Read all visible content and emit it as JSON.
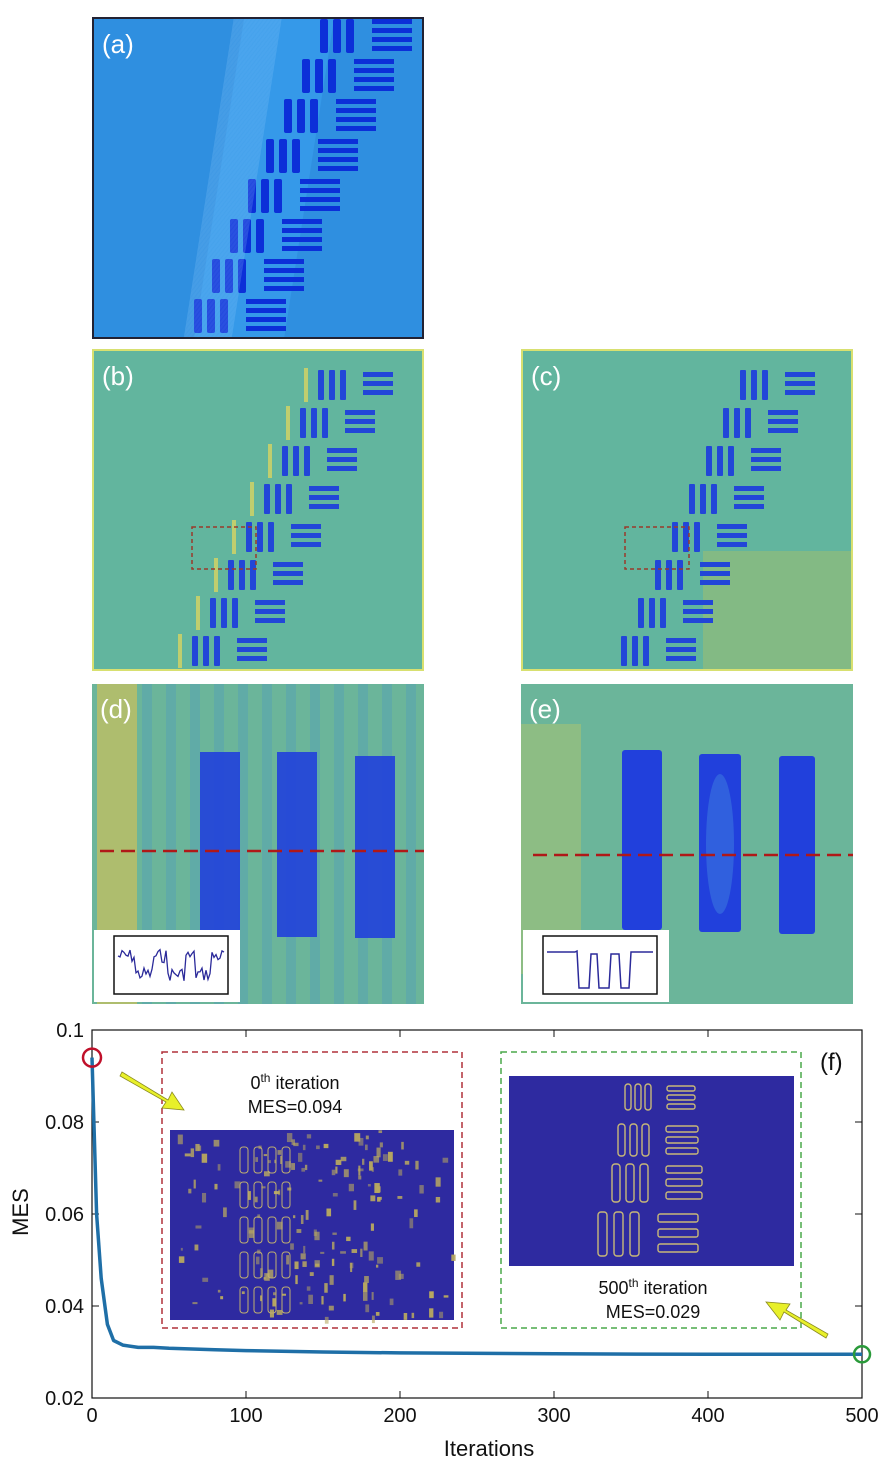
{
  "panels": {
    "a": {
      "label": "(a)"
    },
    "b": {
      "label": "(b)"
    },
    "c": {
      "label": "(c)"
    },
    "d": {
      "label": "(d)"
    },
    "e": {
      "label": "(e)"
    },
    "f": {
      "label": "(f)"
    }
  },
  "colors": {
    "panel_a_bg": "#2f8fe0",
    "panel_a_bar": "#0c2fd8",
    "panel_bc_bg": "#62b59e",
    "panel_bc_bar": "#2246d8",
    "panel_de_bg": "#6bb59a",
    "panel_de_bar": "#2140dc",
    "curve": "#1f6fa7",
    "start_marker": "#c0102a",
    "end_marker": "#2a9a3a",
    "inset0_border": "#b0303a",
    "inset500_border": "#4aa84a",
    "inset_image_bg": "#2e2aa0",
    "arrow": "#e8f02a"
  },
  "chart_data": {
    "type": "line",
    "xlabel": "Iterations",
    "ylabel": "MES",
    "xlim": [
      0,
      500
    ],
    "ylim": [
      0.02,
      0.1
    ],
    "xticks": [
      0,
      100,
      200,
      300,
      400,
      500
    ],
    "yticks": [
      0.02,
      0.04,
      0.06,
      0.08,
      0.1
    ],
    "xtick_labels": [
      "0",
      "100",
      "200",
      "300",
      "400",
      "500"
    ],
    "ytick_labels": [
      "0.02",
      "0.04",
      "0.06",
      "0.08",
      "0.1"
    ],
    "grid": false,
    "series": [
      {
        "x": [
          0,
          3,
          6,
          10,
          14,
          20,
          30,
          40,
          50,
          60,
          80,
          100,
          150,
          200,
          300,
          400,
          500
        ],
        "values": [
          0.094,
          0.06,
          0.046,
          0.036,
          0.0325,
          0.0315,
          0.031,
          0.031,
          0.0308,
          0.0307,
          0.0305,
          0.0303,
          0.03,
          0.0298,
          0.0296,
          0.0295,
          0.0295
        ]
      }
    ],
    "annotations": [
      {
        "iteration_sup": "th",
        "iteration_prefix": "0",
        "iteration_suffix": " iteration",
        "mes": "MES=0.094"
      },
      {
        "iteration_sup": "th",
        "iteration_prefix": "500",
        "iteration_suffix": " iteration",
        "mes": "MES=0.029"
      }
    ]
  }
}
